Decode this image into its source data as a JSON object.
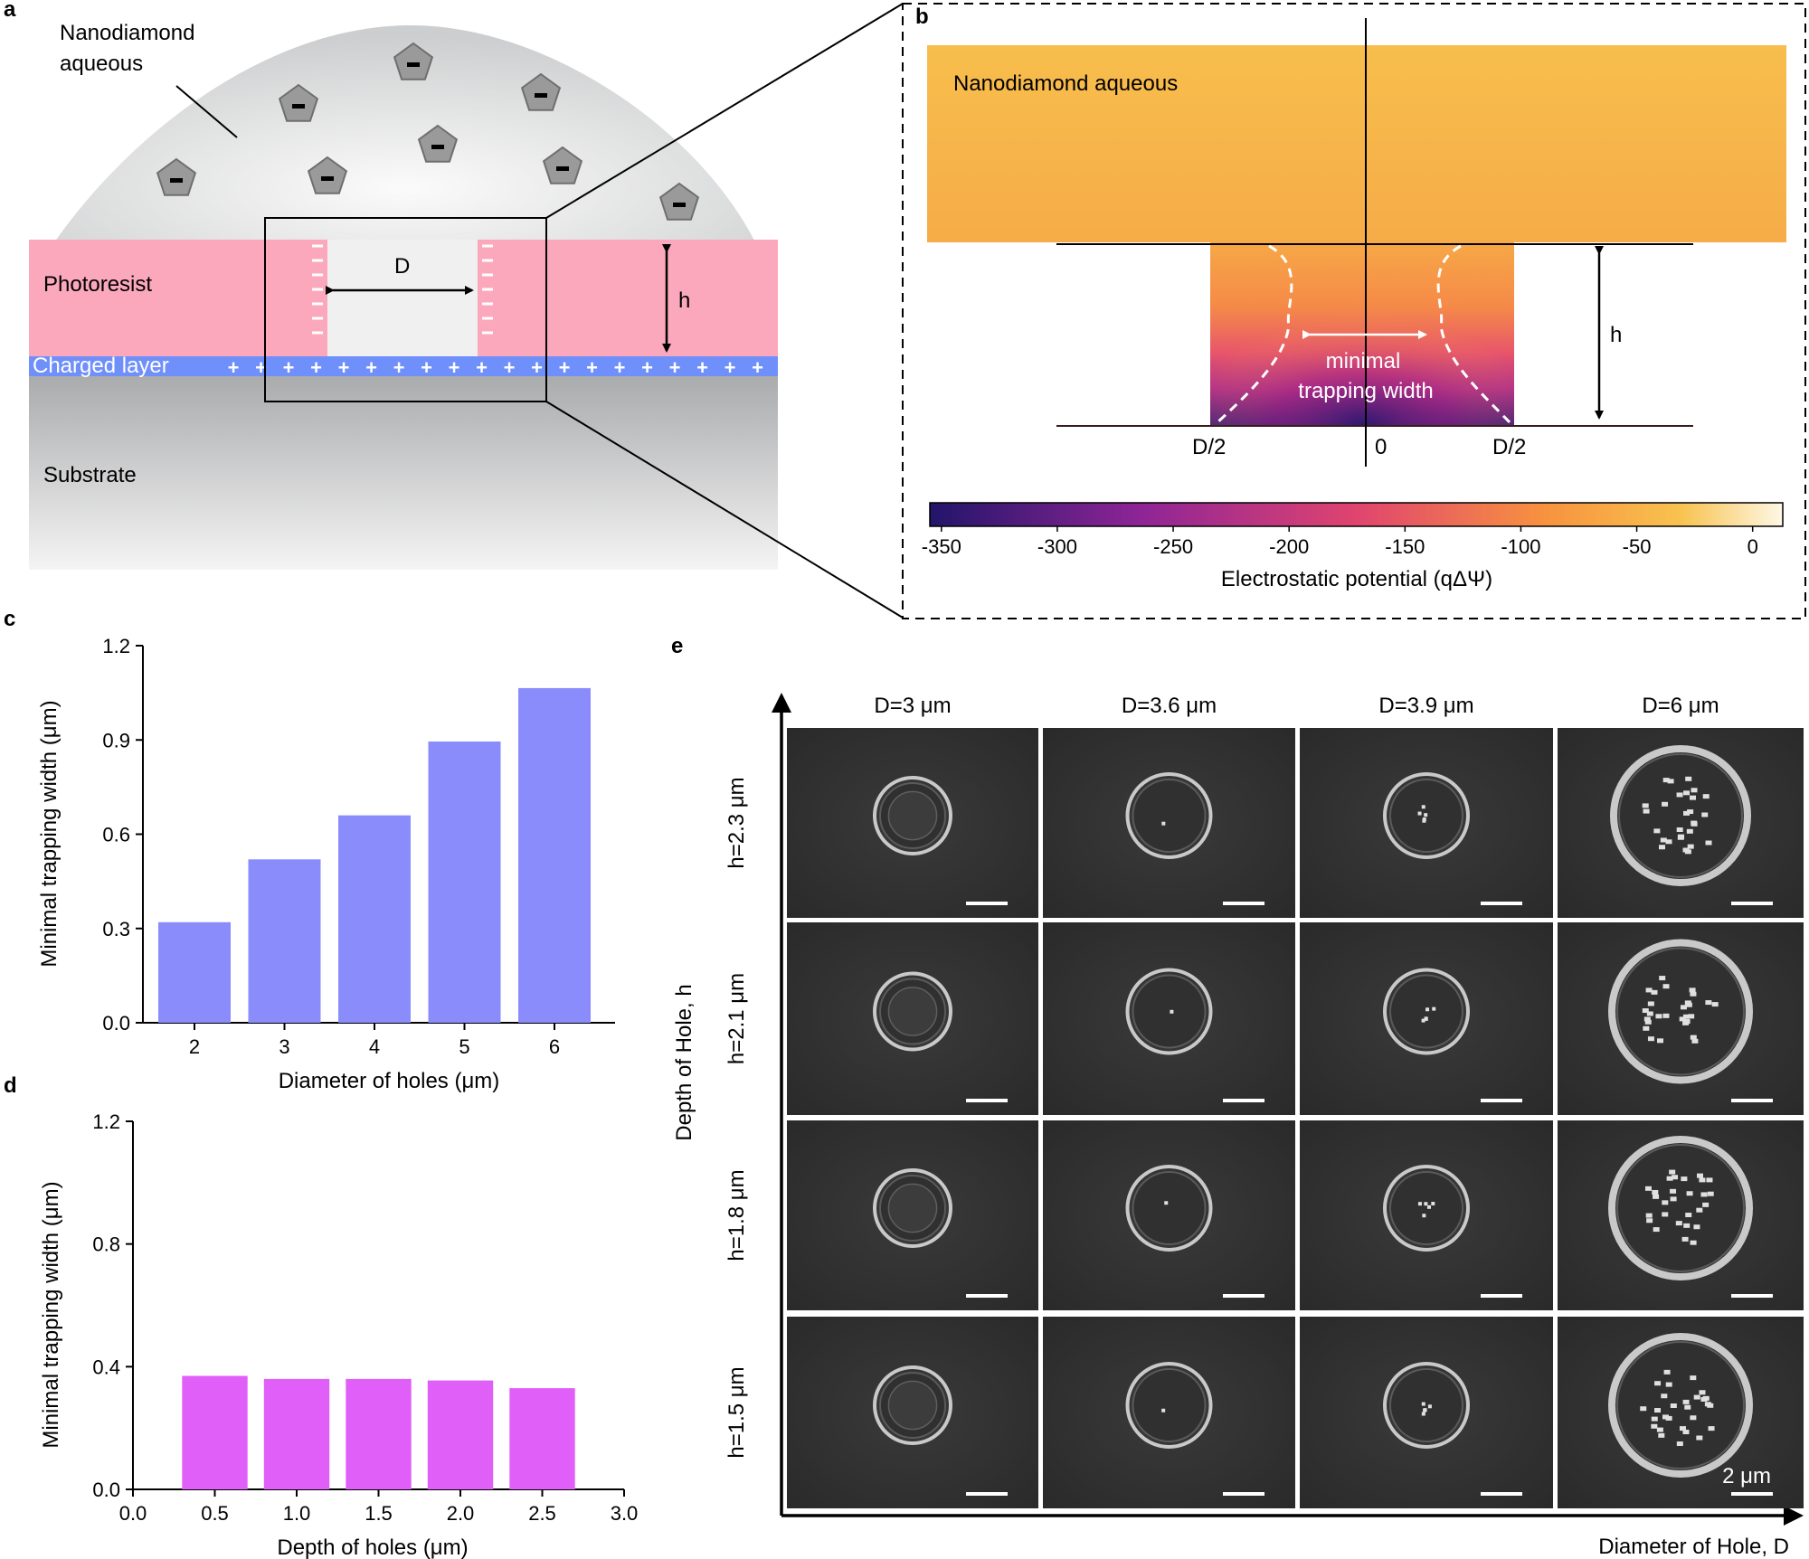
{
  "panel_a": {
    "letter": "a",
    "nanodiamond_label_line1": "Nanodiamond",
    "nanodiamond_label_line2": "aqueous",
    "photoresist_label": "Photoresist",
    "charged_layer_label": "Charged layer",
    "substrate_label": "Substrate",
    "D_label": "D",
    "h_label": "h",
    "negative_sign": "-",
    "positive_sign": "+"
  },
  "panel_b": {
    "letter": "b",
    "aqueous_label": "Nanodiamond aqueous",
    "h_label": "h",
    "minimal_label_line1": "minimal",
    "minimal_label_line2": "trapping width",
    "x_left": "D/2",
    "x_center": "0",
    "x_right": "D/2",
    "colorbar_ticks": [
      "-350",
      "-300",
      "-250",
      "-200",
      "-150",
      "-100",
      "-50",
      "0"
    ],
    "colorbar_title": "Electrostatic potential (qΔΨ)",
    "colors": {
      "dark": "#2c1870",
      "mid": "#d93c7e",
      "orange": "#f7834a",
      "light": "#f7c850",
      "pale": "#fdf6d8"
    }
  },
  "panel_c": {
    "letter": "c",
    "chart_data": {
      "type": "bar",
      "categories": [
        "2",
        "3",
        "4",
        "5",
        "6"
      ],
      "values": [
        0.32,
        0.52,
        0.66,
        0.895,
        1.065
      ],
      "xlabel": "Diameter of holes (μm)",
      "ylabel": "Minimal trapping width (μm)",
      "ylim": [
        0,
        1.2
      ],
      "yticks": [
        "0.0",
        "0.3",
        "0.6",
        "0.9",
        "1.2"
      ],
      "color": "#8a8cfc"
    }
  },
  "panel_d": {
    "letter": "d",
    "chart_data": {
      "type": "bar",
      "x": [
        0.5,
        1.0,
        1.5,
        2.0,
        2.5
      ],
      "values": [
        0.37,
        0.36,
        0.36,
        0.355,
        0.33
      ],
      "xlabel": "Depth of holes (μm)",
      "ylabel": "Minimal trapping width (μm)",
      "xlim": [
        0,
        3.0
      ],
      "ylim": [
        0,
        1.2
      ],
      "xticks": [
        "0.0",
        "0.5",
        "1.0",
        "1.5",
        "2.0",
        "2.5",
        "3.0"
      ],
      "yticks": [
        "0.0",
        "0.4",
        "0.8",
        "1.2"
      ],
      "color": "#e05ff8"
    }
  },
  "panel_e": {
    "letter": "e",
    "columns": [
      "D=3 μm",
      "D=3.6 μm",
      "D=3.9 μm",
      "D=6 μm"
    ],
    "rows": [
      "h=2.3 μm",
      "h=2.1 μm",
      "h=1.8 μm",
      "h=1.5 μm"
    ],
    "y_axis_label": "Depth of Hole, h",
    "x_axis_label": "Diameter of Hole, D",
    "scale_bar_label": "2 μm"
  }
}
